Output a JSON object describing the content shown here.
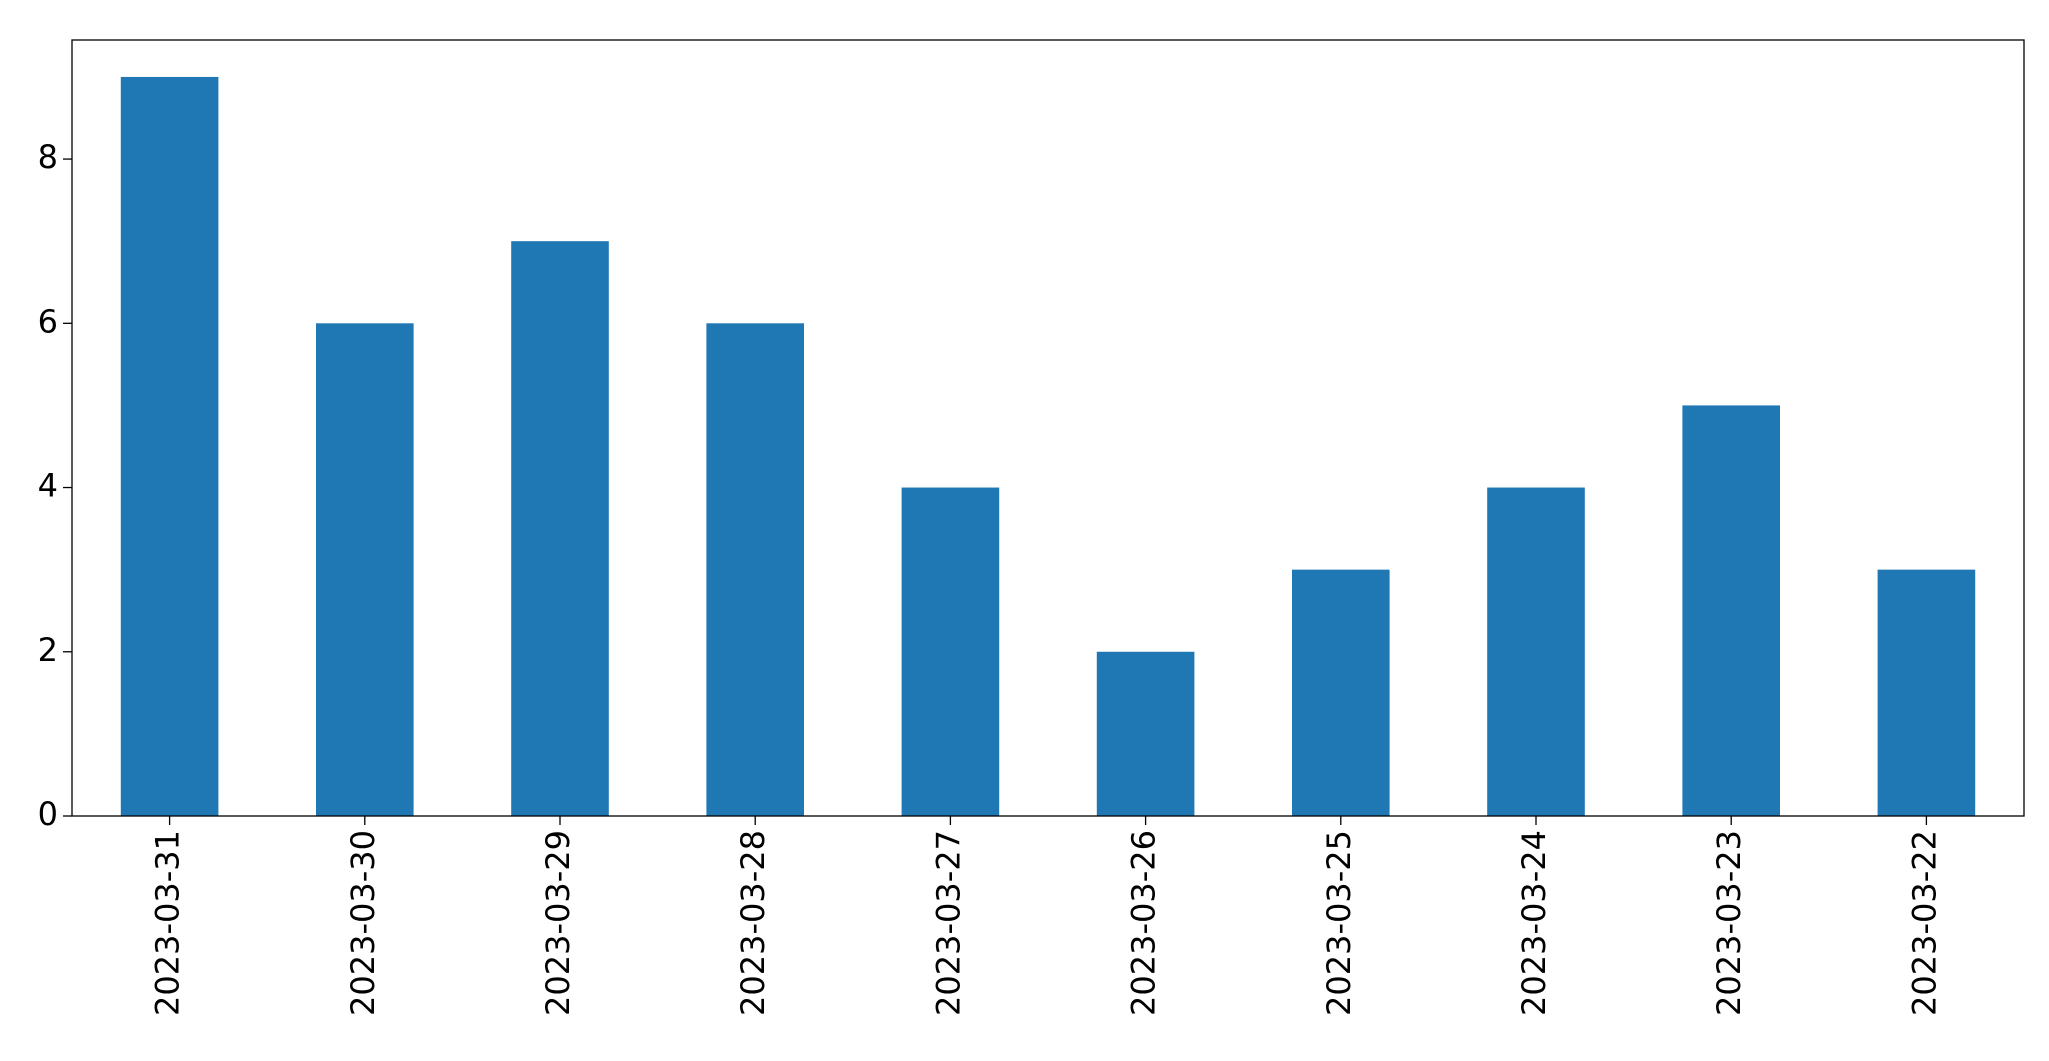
{
  "chart_data": {
    "type": "bar",
    "categories": [
      "2023-03-31",
      "2023-03-30",
      "2023-03-29",
      "2023-03-28",
      "2023-03-27",
      "2023-03-26",
      "2023-03-25",
      "2023-03-24",
      "2023-03-23",
      "2023-03-22"
    ],
    "values": [
      9,
      6,
      7,
      6,
      4,
      2,
      3,
      4,
      5,
      3
    ],
    "color": "#1f77b4",
    "ylim": [
      0,
      9.45
    ],
    "yticks": [
      0,
      2,
      4,
      6,
      8
    ],
    "grid": false
  }
}
